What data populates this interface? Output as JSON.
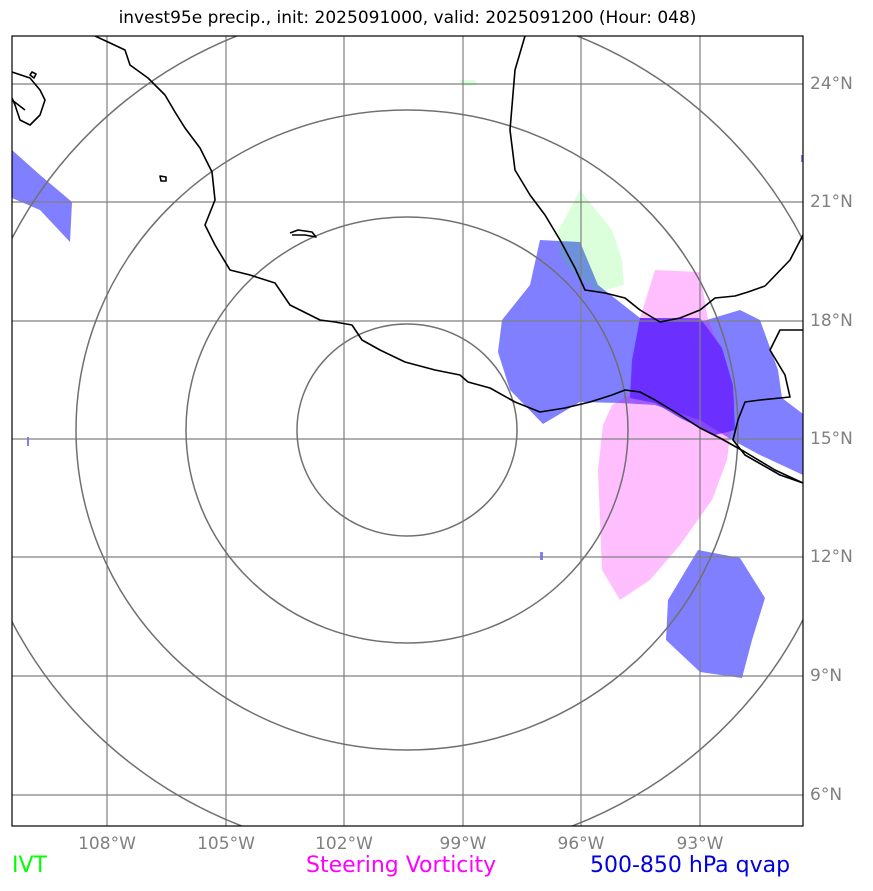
{
  "title": "invest95e precip., init: 2025091000, valid: 2025091200 (Hour: 048)",
  "map": {
    "lon_ticks": [
      "108°W",
      "105°W",
      "102°W",
      "99°W",
      "96°W",
      "93°W"
    ],
    "lat_ticks": [
      "24°N",
      "21°N",
      "18°N",
      "15°N",
      "12°N",
      "9°N",
      "6°N"
    ],
    "range_rings": "concentric rings centered near 100°W, 15°N",
    "layers": [
      {
        "name": "IVT",
        "color": "#00ff00"
      },
      {
        "name": "Steering Vorticity",
        "color": "#ff00ff"
      },
      {
        "name": "500-850 hPa qvap",
        "color": "#0000dd"
      }
    ]
  },
  "legend": {
    "ivt": "IVT",
    "vorticity": "Steering Vorticity",
    "qvap": "500-850 hPa qvap"
  },
  "colors": {
    "ivt": "#00ff00",
    "vorticity": "#ff00ff",
    "qvap": "#0000dd",
    "grid": "#808080",
    "coast": "#000000"
  }
}
